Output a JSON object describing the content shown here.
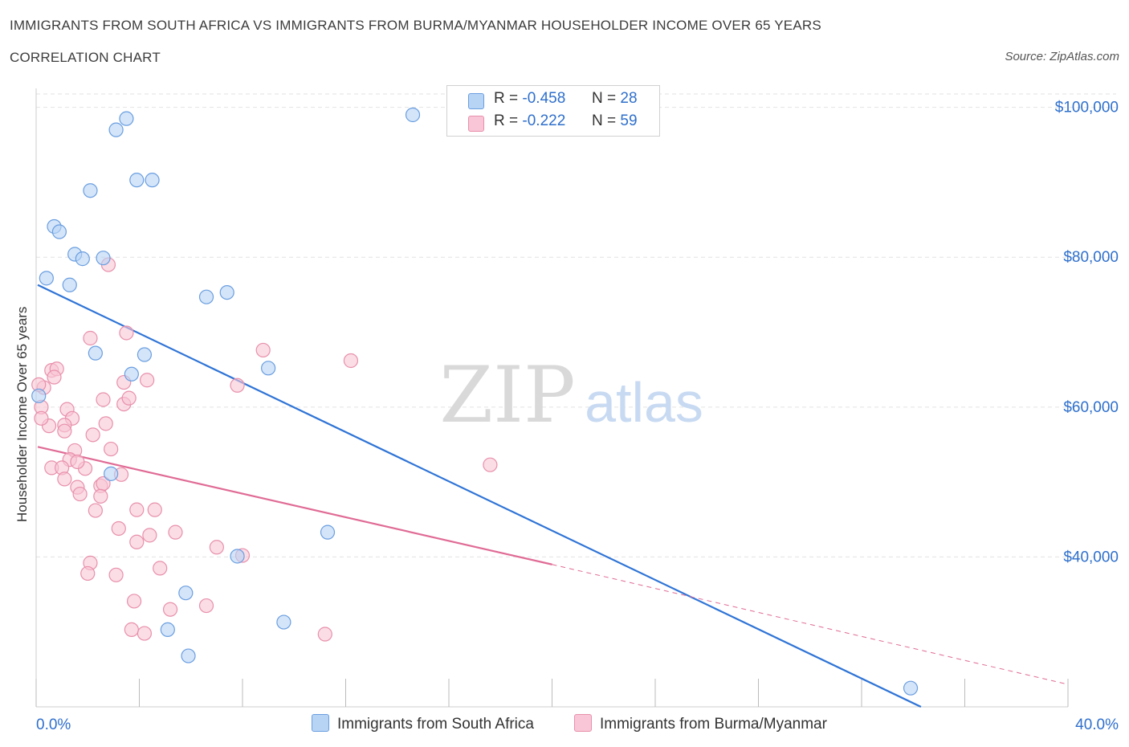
{
  "header": {
    "title": "IMMIGRANTS FROM SOUTH AFRICA VS IMMIGRANTS FROM BURMA/MYANMAR HOUSEHOLDER INCOME OVER 65 YEARS",
    "subtitle": "CORRELATION CHART",
    "source": "Source: ZipAtlas.com"
  },
  "legend": {
    "r_label": "R =",
    "n_label": "N =",
    "items": [
      {
        "r": "-0.458",
        "n": "28"
      },
      {
        "r": "-0.222",
        "n": "59"
      }
    ]
  },
  "bottom_legend": {
    "south_africa": "Immigrants from South Africa",
    "burma": "Immigrants from Burma/Myanmar"
  },
  "colors": {
    "south_africa_fill": "#b8d4f5",
    "south_africa_stroke": "#6a9ee0",
    "south_africa_line": "#2f74d6",
    "burma_fill": "#f8c6d6",
    "burma_stroke": "#e890ab",
    "burma_line": "#e06b95",
    "axis_label": "#2e6fcc",
    "grid": "#e2e2e2"
  },
  "chart_data": {
    "type": "scatter",
    "title": "IMMIGRANTS FROM SOUTH AFRICA VS IMMIGRANTS FROM BURMA/MYANMAR HOUSEHOLDER INCOME OVER 65 YEARS",
    "xlabel": "",
    "ylabel": "Householder Income Over 65 years",
    "xlim": [
      0,
      40
    ],
    "ylim": [
      20000,
      102000
    ],
    "x_tick_labels": [
      "0.0%",
      "40.0%"
    ],
    "y_ticks": [
      40000,
      60000,
      80000,
      100000
    ],
    "y_tick_labels": [
      "$40,000",
      "$60,000",
      "$80,000",
      "$100,000"
    ],
    "grid": true,
    "legend_position": "top-center",
    "watermark": "ZIPatlas",
    "series": [
      {
        "name": "Immigrants from South Africa",
        "R": -0.458,
        "N": 28,
        "points": [
          [
            3.5,
            98500
          ],
          [
            3.1,
            97000
          ],
          [
            14.6,
            99000
          ],
          [
            2.1,
            88900
          ],
          [
            3.9,
            90300
          ],
          [
            4.5,
            90300
          ],
          [
            0.7,
            84100
          ],
          [
            0.9,
            83400
          ],
          [
            1.5,
            80400
          ],
          [
            1.8,
            79800
          ],
          [
            2.6,
            79900
          ],
          [
            0.4,
            77200
          ],
          [
            1.3,
            76300
          ],
          [
            6.6,
            74700
          ],
          [
            7.4,
            75300
          ],
          [
            2.3,
            67200
          ],
          [
            4.2,
            67000
          ],
          [
            3.7,
            64400
          ],
          [
            9.0,
            65200
          ],
          [
            0.1,
            61500
          ],
          [
            2.9,
            51100
          ],
          [
            11.3,
            43300
          ],
          [
            7.8,
            40100
          ],
          [
            5.8,
            35200
          ],
          [
            5.1,
            30300
          ],
          [
            9.6,
            31300
          ],
          [
            5.9,
            26800
          ],
          [
            33.9,
            22500
          ]
        ],
        "trend": {
          "x": [
            0.0,
            34.3
          ],
          "y": [
            76300,
            20000
          ]
        }
      },
      {
        "name": "Immigrants from Burma/Myanmar",
        "R": -0.222,
        "N": 59,
        "points": [
          [
            2.8,
            79000
          ],
          [
            3.5,
            69900
          ],
          [
            2.1,
            69200
          ],
          [
            8.8,
            67600
          ],
          [
            12.2,
            66200
          ],
          [
            0.6,
            64900
          ],
          [
            0.8,
            65100
          ],
          [
            0.7,
            64000
          ],
          [
            0.3,
            62600
          ],
          [
            2.6,
            61000
          ],
          [
            3.4,
            63300
          ],
          [
            4.3,
            63600
          ],
          [
            3.4,
            60400
          ],
          [
            3.6,
            61200
          ],
          [
            7.8,
            62900
          ],
          [
            0.2,
            60000
          ],
          [
            1.2,
            59700
          ],
          [
            1.4,
            58500
          ],
          [
            0.5,
            57500
          ],
          [
            1.1,
            57600
          ],
          [
            2.7,
            57800
          ],
          [
            1.1,
            56800
          ],
          [
            2.2,
            56300
          ],
          [
            1.5,
            54200
          ],
          [
            2.9,
            54400
          ],
          [
            1.3,
            53000
          ],
          [
            0.6,
            51900
          ],
          [
            1.0,
            51900
          ],
          [
            1.9,
            51800
          ],
          [
            3.3,
            51000
          ],
          [
            1.1,
            50400
          ],
          [
            1.6,
            49300
          ],
          [
            2.5,
            49500
          ],
          [
            2.6,
            49800
          ],
          [
            17.6,
            52300
          ],
          [
            1.7,
            48400
          ],
          [
            2.5,
            48100
          ],
          [
            2.3,
            46200
          ],
          [
            3.9,
            46300
          ],
          [
            4.6,
            46300
          ],
          [
            3.2,
            43800
          ],
          [
            4.4,
            42900
          ],
          [
            5.4,
            43300
          ],
          [
            3.9,
            42000
          ],
          [
            7.0,
            41300
          ],
          [
            8.0,
            40200
          ],
          [
            2.1,
            39200
          ],
          [
            2.0,
            37800
          ],
          [
            3.1,
            37600
          ],
          [
            4.8,
            38500
          ],
          [
            3.8,
            34100
          ],
          [
            5.2,
            33000
          ],
          [
            6.6,
            33500
          ],
          [
            3.7,
            30300
          ],
          [
            4.2,
            29800
          ],
          [
            11.2,
            29700
          ],
          [
            0.1,
            63000
          ],
          [
            0.2,
            58500
          ],
          [
            1.6,
            52700
          ]
        ],
        "trend": {
          "x": [
            0.0,
            20.0
          ],
          "y": [
            54700,
            39000
          ]
        },
        "trend_dashed": {
          "x": [
            20.0,
            40.0
          ],
          "y": [
            39000,
            23000
          ]
        }
      }
    ]
  }
}
